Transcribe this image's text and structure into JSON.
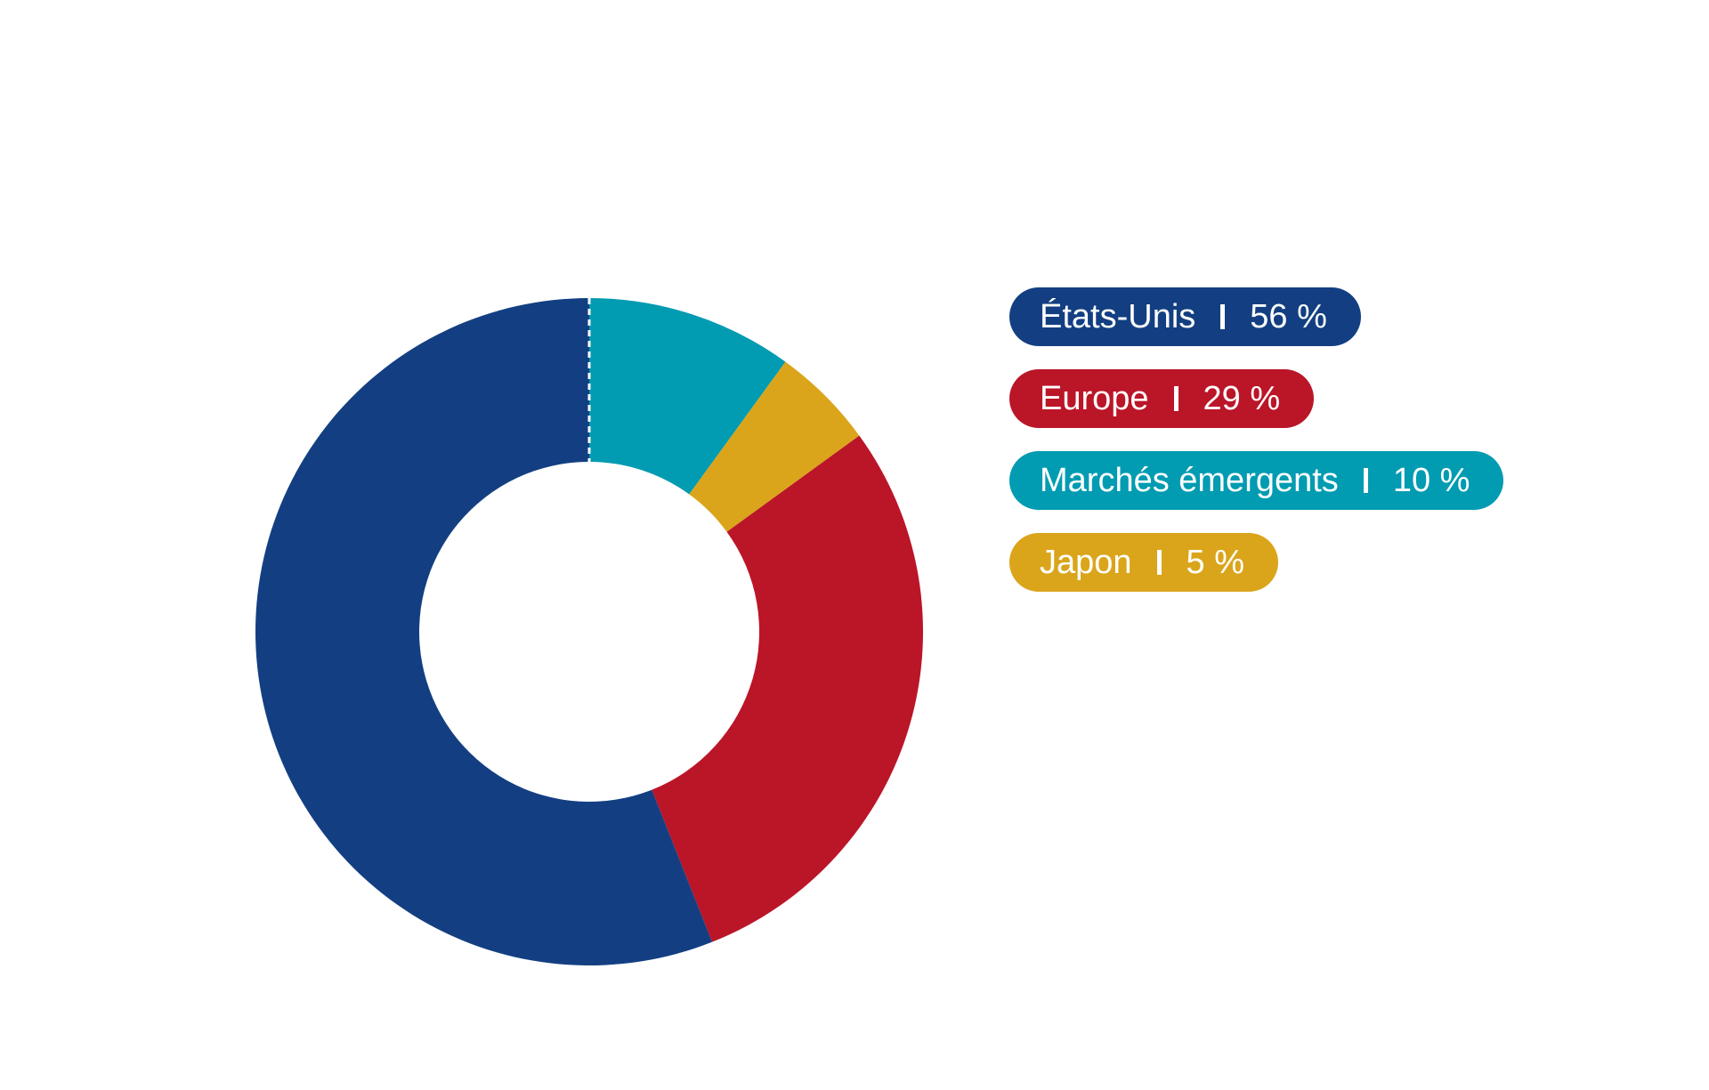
{
  "chart_data": {
    "type": "pie",
    "variant": "donut",
    "start_angle_deg": 0,
    "direction": "clockwise",
    "slice_order": [
      "Marchés émergents",
      "Japon",
      "Europe",
      "États-Unis"
    ],
    "series": [
      {
        "name": "États-Unis",
        "value": 56,
        "label": "56 %",
        "color": "#133F82"
      },
      {
        "name": "Europe",
        "value": 29,
        "label": "29 %",
        "color": "#BB1528"
      },
      {
        "name": "Marchés émergents",
        "value": 10,
        "label": "10 %",
        "color": "#019BB2"
      },
      {
        "name": "Japon",
        "value": 5,
        "label": "5 %",
        "color": "#DAA51B"
      }
    ],
    "legend": {
      "position": "right",
      "separator": "I"
    },
    "start_marker": "dashed-white-line"
  }
}
